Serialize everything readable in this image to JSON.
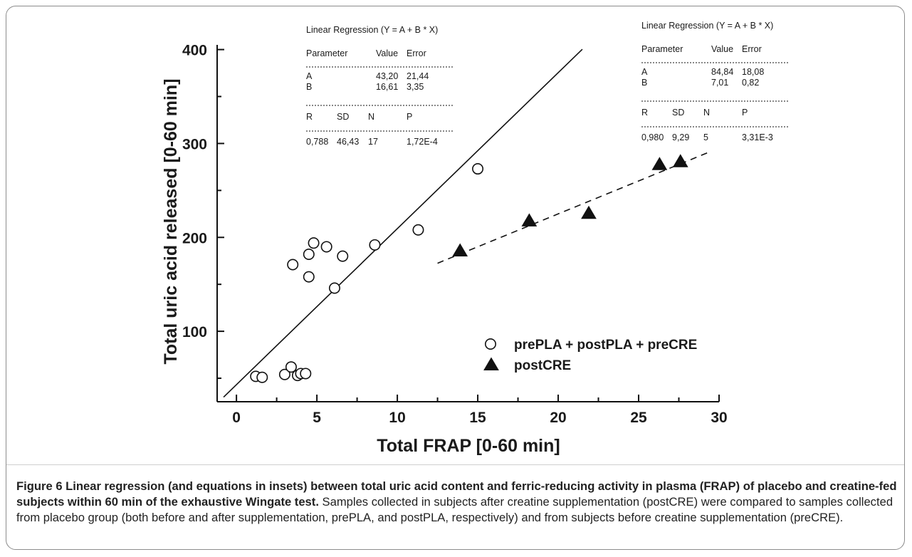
{
  "chart_data": {
    "type": "scatter",
    "xlabel": "Total FRAP [0-60 min]",
    "ylabel": "Total uric acid released [0-60 min]",
    "xlim": [
      -1.2,
      30
    ],
    "ylim": [
      25,
      405
    ],
    "xticks": [
      0,
      5,
      10,
      15,
      20,
      25,
      30
    ],
    "yticks": [
      100,
      200,
      300,
      400
    ],
    "series": [
      {
        "name": "prePLA + postPLA + preCRE",
        "marker": "open-circle",
        "x": [
          1.2,
          1.6,
          3.0,
          3.4,
          3.5,
          3.8,
          4.0,
          4.3,
          4.5,
          4.5,
          4.8,
          5.6,
          6.1,
          6.6,
          8.6,
          11.3,
          15.0
        ],
        "y": [
          52,
          51,
          54,
          62,
          171,
          53,
          55,
          55,
          158,
          182,
          194,
          190,
          146,
          180,
          192,
          208,
          273
        ]
      },
      {
        "name": "postCRE",
        "marker": "filled-triangle",
        "x": [
          13.9,
          18.2,
          21.9,
          26.3,
          27.6
        ],
        "y": [
          185,
          217,
          225,
          277,
          280
        ]
      }
    ],
    "fits": [
      {
        "intercept": 43.2,
        "slope": 16.61,
        "x_range": [
          -0.8,
          21.5
        ],
        "style": "solid"
      },
      {
        "intercept": 84.84,
        "slope": 7.01,
        "x_range": [
          12.5,
          29.5
        ],
        "style": "dashed"
      }
    ],
    "insets": [
      {
        "title": "Linear Regression (Y = A + B * X)",
        "param_header": [
          "Parameter",
          "Value",
          "Error"
        ],
        "rule": "------------------------------------------------------------",
        "params": [
          [
            "A",
            "43,20",
            "21,44"
          ],
          [
            "B",
            "16,61",
            "3,35"
          ]
        ],
        "stats_header": [
          "R",
          "SD",
          "N",
          "P"
        ],
        "stats": [
          "0,788",
          "46,43",
          "17",
          "1,72E-4"
        ]
      },
      {
        "title": "Linear Regression (Y = A + B * X)",
        "param_header": [
          "Parameter",
          "Value",
          "Error"
        ],
        "rule": "------------------------------------------------------------",
        "params": [
          [
            "A",
            "84,84",
            "18,08"
          ],
          [
            "B",
            "7,01",
            "0,82"
          ]
        ],
        "stats_header": [
          "R",
          "SD",
          "N",
          "P"
        ],
        "stats": [
          "0,980",
          "9,29",
          "5",
          "3,31E-3"
        ]
      }
    ],
    "legend": [
      "prePLA + postPLA + preCRE",
      "postCRE"
    ],
    "legend_position": "lower-right"
  },
  "caption": {
    "bold": "Figure 6 Linear regression (and equations in insets) between total uric acid content and ferric-reducing activity in plasma (FRAP) of placebo and creatine-fed subjects within 60 min of the exhaustive Wingate test.",
    "text": " Samples collected in subjects after creatine supplementation (postCRE) were compared to samples collected from placebo group (both before and after supplementation, prePLA, and postPLA, respectively) and from subjects before creatine supplementation (preCRE)."
  }
}
